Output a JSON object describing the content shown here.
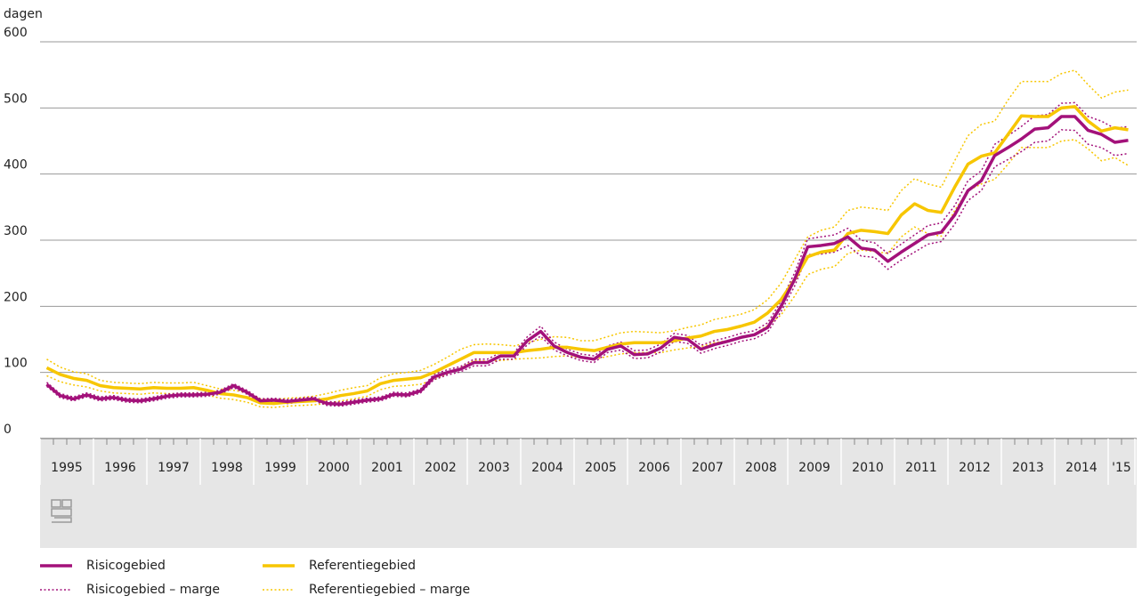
{
  "chart_data": {
    "type": "line",
    "y_label": "dagen",
    "ylim": [
      0,
      600
    ],
    "yticks": [
      0,
      100,
      200,
      300,
      400,
      500,
      600
    ],
    "grid": true,
    "year_labels": [
      "1995",
      "1996",
      "1997",
      "1998",
      "1999",
      "2000",
      "2001",
      "2002",
      "2003",
      "2004",
      "2005",
      "2006",
      "2007",
      "2008",
      "2009",
      "2010",
      "2011",
      "2012",
      "2013",
      "2014",
      "'15"
    ],
    "series": [
      {
        "name": "Risicogebied",
        "color": "#a3117a",
        "line_style": "solid",
        "values": [
          82,
          65,
          60,
          66,
          60,
          62,
          58,
          57,
          60,
          64,
          66,
          66,
          67,
          70,
          80,
          70,
          57,
          58,
          56,
          58,
          60,
          53,
          52,
          55,
          58,
          60,
          67,
          66,
          72,
          93,
          100,
          105,
          115,
          115,
          125,
          125,
          148,
          162,
          140,
          130,
          123,
          120,
          135,
          140,
          127,
          128,
          137,
          153,
          150,
          135,
          142,
          147,
          153,
          157,
          168,
          200,
          240,
          290,
          292,
          295,
          305,
          288,
          285,
          268,
          282,
          295,
          308,
          312,
          338,
          375,
          390,
          428,
          440,
          453,
          468,
          470,
          487,
          487,
          466,
          460,
          448,
          451
        ]
      },
      {
        "name": "Referentiegebied",
        "color": "#f7c600",
        "line_style": "solid",
        "values": [
          107,
          97,
          91,
          88,
          80,
          77,
          76,
          75,
          77,
          76,
          76,
          77,
          73,
          68,
          66,
          62,
          54,
          53,
          55,
          56,
          57,
          60,
          65,
          68,
          72,
          83,
          88,
          90,
          92,
          100,
          110,
          120,
          130,
          130,
          130,
          130,
          133,
          135,
          138,
          138,
          135,
          133,
          138,
          143,
          145,
          145,
          145,
          148,
          152,
          155,
          162,
          165,
          170,
          176,
          190,
          210,
          240,
          275,
          282,
          285,
          310,
          315,
          313,
          310,
          338,
          355,
          345,
          342,
          380,
          415,
          427,
          432,
          460,
          488,
          487,
          487,
          500,
          502,
          480,
          465,
          470,
          467
        ]
      },
      {
        "name": "Risicogebied – marge",
        "color": "#a3117a",
        "line_style": "dotted",
        "values": [
          85,
          68,
          63,
          69,
          63,
          65,
          61,
          60,
          63,
          67,
          69,
          69,
          70,
          73,
          83,
          73,
          60,
          61,
          59,
          61,
          63,
          56,
          55,
          58,
          61,
          63,
          70,
          69,
          75,
          97,
          104,
          109,
          120,
          120,
          130,
          130,
          154,
          170,
          146,
          135,
          128,
          125,
          140,
          146,
          133,
          134,
          143,
          159,
          156,
          141,
          148,
          153,
          159,
          163,
          175,
          208,
          250,
          302,
          305,
          308,
          318,
          300,
          296,
          280,
          294,
          308,
          322,
          326,
          352,
          390,
          405,
          445,
          458,
          472,
          488,
          490,
          507,
          508,
          487,
          480,
          469,
          472
        ],
        "values_low": [
          79,
          62,
          57,
          63,
          57,
          59,
          55,
          54,
          57,
          61,
          63,
          63,
          64,
          67,
          77,
          67,
          54,
          55,
          53,
          55,
          57,
          50,
          49,
          52,
          55,
          57,
          64,
          63,
          69,
          89,
          96,
          101,
          110,
          110,
          120,
          120,
          142,
          155,
          134,
          125,
          118,
          115,
          130,
          134,
          121,
          122,
          131,
          147,
          144,
          129,
          136,
          141,
          147,
          151,
          161,
          192,
          230,
          278,
          279,
          282,
          292,
          276,
          274,
          256,
          270,
          282,
          294,
          298,
          324,
          360,
          375,
          411,
          422,
          434,
          448,
          450,
          467,
          466,
          445,
          440,
          428,
          431
        ]
      },
      {
        "name": "Referentiegebied – marge",
        "color": "#f7c600",
        "line_style": "dotted",
        "values": [
          120,
          108,
          101,
          98,
          88,
          85,
          84,
          83,
          85,
          84,
          84,
          85,
          80,
          75,
          73,
          70,
          60,
          59,
          61,
          62,
          64,
          68,
          73,
          77,
          80,
          92,
          98,
          100,
          103,
          112,
          123,
          135,
          142,
          143,
          142,
          140,
          145,
          150,
          154,
          153,
          148,
          148,
          154,
          160,
          162,
          161,
          160,
          163,
          168,
          172,
          180,
          184,
          188,
          195,
          210,
          235,
          270,
          305,
          315,
          320,
          345,
          350,
          348,
          345,
          375,
          393,
          385,
          380,
          420,
          458,
          475,
          480,
          512,
          540,
          540,
          540,
          552,
          557,
          535,
          515,
          524,
          527
        ],
        "values_low": [
          95,
          86,
          81,
          78,
          72,
          69,
          68,
          67,
          69,
          68,
          68,
          69,
          66,
          61,
          59,
          55,
          48,
          47,
          49,
          50,
          51,
          53,
          57,
          60,
          64,
          74,
          79,
          80,
          82,
          89,
          98,
          107,
          118,
          117,
          118,
          120,
          121,
          122,
          124,
          125,
          122,
          120,
          124,
          128,
          130,
          130,
          130,
          134,
          137,
          139,
          145,
          148,
          153,
          158,
          171,
          187,
          215,
          248,
          256,
          260,
          280,
          285,
          283,
          280,
          305,
          320,
          310,
          306,
          345,
          375,
          385,
          392,
          415,
          440,
          440,
          440,
          450,
          452,
          438,
          420,
          425,
          413
        ]
      }
    ]
  }
}
